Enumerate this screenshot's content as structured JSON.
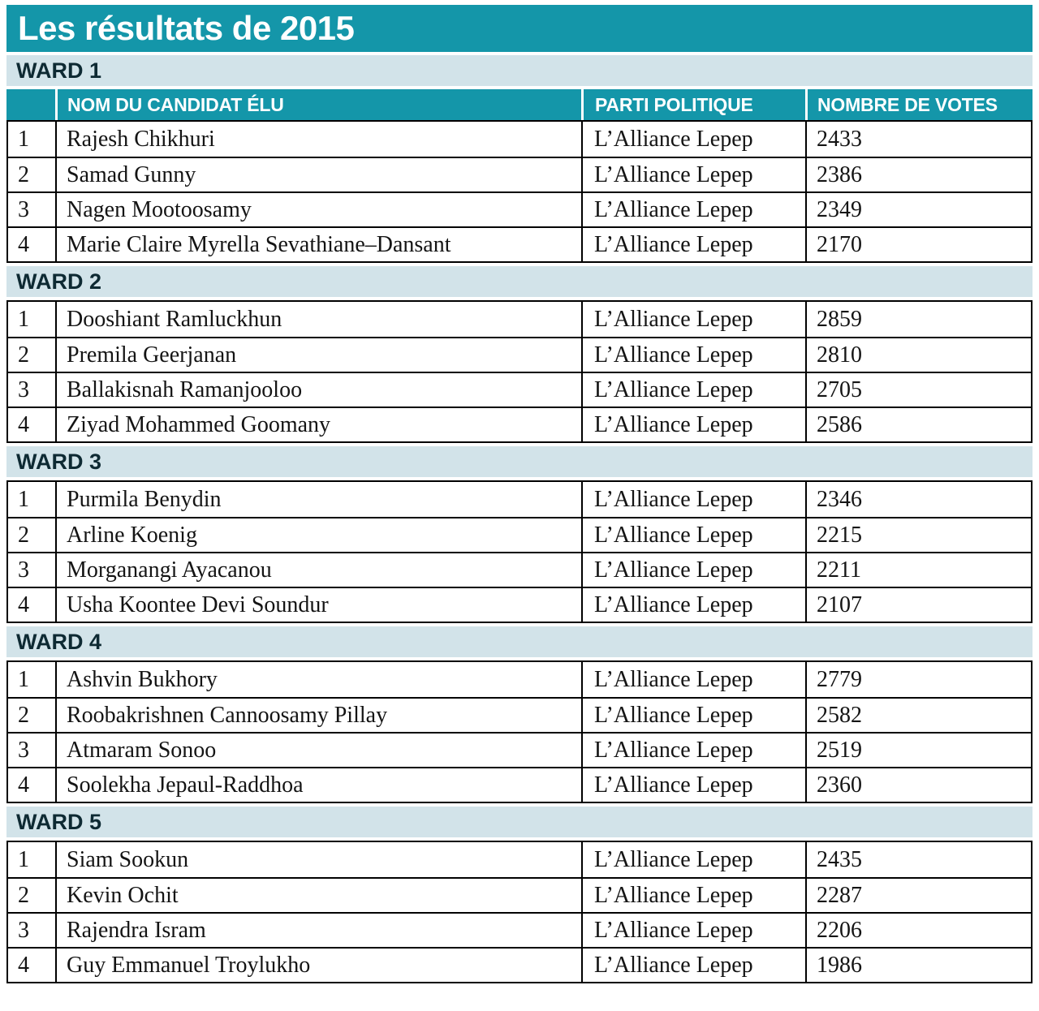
{
  "chart_data": {
    "type": "table",
    "title": "Les résultats de 2015",
    "columns": {
      "index": "",
      "name": "NOM DU CANDIDAT ÉLU",
      "party": "PARTI POLITIQUE",
      "votes": "NOMBRE DE VOTES"
    },
    "sections": [
      {
        "label": "WARD 1",
        "rows": [
          {
            "n": "1",
            "name": "Rajesh Chikhuri",
            "party": "L’Alliance Lepep",
            "votes": "2433"
          },
          {
            "n": "2",
            "name": "Samad Gunny",
            "party": "L’Alliance Lepep",
            "votes": "2386"
          },
          {
            "n": "3",
            "name": "Nagen Mootoosamy",
            "party": "L’Alliance Lepep",
            "votes": "2349"
          },
          {
            "n": "4",
            "name": "Marie Claire Myrella Sevathiane–Dansant",
            "party": "L’Alliance Lepep",
            "votes": "2170"
          }
        ]
      },
      {
        "label": "WARD 2",
        "rows": [
          {
            "n": "1",
            "name": "Dooshiant Ramluckhun",
            "party": "L’Alliance Lepep",
            "votes": "2859"
          },
          {
            "n": "2",
            "name": "Premila Geerjanan",
            "party": "L’Alliance Lepep",
            "votes": "2810"
          },
          {
            "n": "3",
            "name": "Ballakisnah Ramanjooloo",
            "party": "L’Alliance Lepep",
            "votes": "2705"
          },
          {
            "n": "4",
            "name": "Ziyad Mohammed Goomany",
            "party": "L’Alliance Lepep",
            "votes": "2586"
          }
        ]
      },
      {
        "label": "WARD 3",
        "rows": [
          {
            "n": "1",
            "name": "Purmila Benydin",
            "party": "L’Alliance Lepep",
            "votes": "2346"
          },
          {
            "n": "2",
            "name": "Arline Koenig",
            "party": "L’Alliance Lepep",
            "votes": "2215"
          },
          {
            "n": "3",
            "name": "Morganangi Ayacanou",
            "party": "L’Alliance Lepep",
            "votes": "2211"
          },
          {
            "n": "4",
            "name": "Usha Koontee Devi Soundur",
            "party": "L’Alliance Lepep",
            "votes": "2107"
          }
        ]
      },
      {
        "label": "WARD 4",
        "rows": [
          {
            "n": "1",
            "name": "Ashvin Bukhory",
            "party": "L’Alliance Lepep",
            "votes": "2779"
          },
          {
            "n": "2",
            "name": "Roobakrishnen Cannoosamy Pillay",
            "party": "L’Alliance Lepep",
            "votes": "2582"
          },
          {
            "n": "3",
            "name": "Atmaram Sonoo",
            "party": "L’Alliance Lepep",
            "votes": "2519"
          },
          {
            "n": "4",
            "name": "Soolekha Jepaul-Raddhoa",
            "party": "L’Alliance Lepep",
            "votes": "2360"
          }
        ]
      },
      {
        "label": "WARD 5",
        "rows": [
          {
            "n": "1",
            "name": "Siam Sookun",
            "party": "L’Alliance Lepep",
            "votes": "2435"
          },
          {
            "n": "2",
            "name": "Kevin Ochit",
            "party": "L’Alliance Lepep",
            "votes": "2287"
          },
          {
            "n": "3",
            "name": "Rajendra Isram",
            "party": "L’Alliance Lepep",
            "votes": "2206"
          },
          {
            "n": "4",
            "name": "Guy Emmanuel Troylukho",
            "party": "L’Alliance Lepep",
            "votes": "1986"
          }
        ]
      }
    ]
  },
  "colors": {
    "teal": "#1496a9",
    "section_bg": "#d2e3e9",
    "section_text": "#0e2a33",
    "row_text": "#141414",
    "border": "#000000"
  }
}
